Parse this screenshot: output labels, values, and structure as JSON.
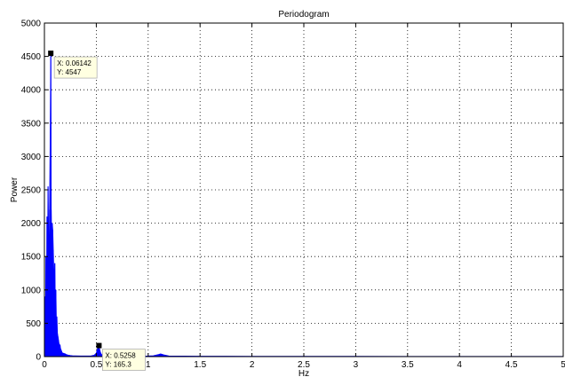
{
  "chart_data": {
    "type": "area",
    "title": "Periodogram",
    "xlabel": "Hz",
    "ylabel": "Power",
    "xlim": [
      0,
      5
    ],
    "ylim": [
      0,
      5000
    ],
    "xticks": [
      "0",
      "0.5",
      "1",
      "1.5",
      "2",
      "2.5",
      "3",
      "3.5",
      "4",
      "4.5",
      "5"
    ],
    "yticks": [
      "0",
      "500",
      "1000",
      "1500",
      "2000",
      "2500",
      "3000",
      "3500",
      "4000",
      "4500",
      "5000"
    ],
    "grid": true,
    "series_color": "#0000ff",
    "series": [
      {
        "x": [
          0.0,
          0.005,
          0.01,
          0.015,
          0.02,
          0.025,
          0.03,
          0.035,
          0.04,
          0.045,
          0.05,
          0.055,
          0.06142,
          0.065,
          0.07,
          0.075,
          0.08,
          0.085,
          0.09,
          0.095,
          0.1,
          0.105,
          0.11,
          0.115,
          0.12,
          0.125,
          0.13,
          0.135,
          0.14,
          0.145,
          0.15,
          0.155,
          0.16,
          0.165,
          0.17,
          0.18,
          0.19,
          0.2,
          0.21,
          0.22,
          0.23,
          0.24,
          0.25,
          0.27,
          0.3,
          0.35,
          0.4,
          0.45,
          0.48,
          0.5,
          0.51,
          0.52,
          0.5258,
          0.53,
          0.54,
          0.55,
          0.57,
          0.6,
          0.7,
          0.8,
          0.9,
          1.0,
          1.05,
          1.1,
          1.12,
          1.15,
          1.2,
          1.5,
          2.0,
          2.5,
          3.0,
          3.5,
          4.0,
          4.5,
          5.0
        ],
        "y": [
          20,
          900,
          300,
          1500,
          600,
          2100,
          1200,
          2550,
          1800,
          1000,
          2200,
          3000,
          4547,
          2200,
          1700,
          2000,
          1900,
          1600,
          1300,
          900,
          1400,
          700,
          1000,
          500,
          600,
          350,
          300,
          250,
          200,
          150,
          180,
          120,
          100,
          80,
          60,
          50,
          45,
          40,
          30,
          25,
          20,
          18,
          15,
          12,
          10,
          8,
          8,
          10,
          20,
          50,
          110,
          130,
          165.3,
          120,
          60,
          30,
          15,
          8,
          5,
          5,
          6,
          8,
          12,
          30,
          40,
          25,
          8,
          5,
          4,
          3,
          3,
          2,
          2,
          2,
          2
        ]
      }
    ],
    "annotations": [
      {
        "x": 0.06142,
        "y": 4547,
        "label_x": "X: 0.06142",
        "label_y": "Y: 4547"
      },
      {
        "x": 0.5258,
        "y": 165.3,
        "label_x": "X: 0.5258",
        "label_y": "Y: 165.3"
      }
    ]
  }
}
